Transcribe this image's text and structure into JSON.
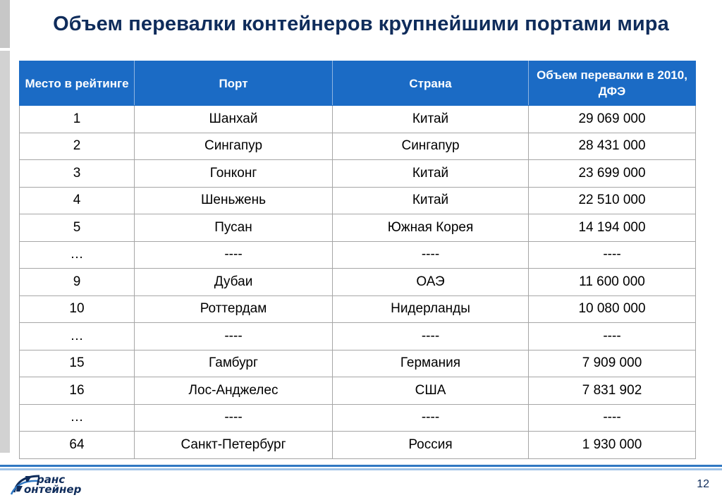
{
  "slide": {
    "title": "Объем перевалки контейнеров крупнейшими портами мира",
    "page_number": "12"
  },
  "logo": {
    "line1": "ранс",
    "line2": "онтейнер",
    "mark": "logo-mark-icon"
  },
  "table": {
    "headers": [
      "Место в рейтинге",
      "Порт",
      "Страна",
      "Объем перевалки в 2010, ДФЭ"
    ],
    "rows": [
      [
        "1",
        "Шанхай",
        "Китай",
        "29 069 000"
      ],
      [
        "2",
        "Сингапур",
        "Сингапур",
        "28 431 000"
      ],
      [
        "3",
        "Гонконг",
        "Китай",
        "23 699 000"
      ],
      [
        "4",
        "Шеньжень",
        "Китай",
        "22 510 000"
      ],
      [
        "5",
        "Пусан",
        "Южная Корея",
        "14 194 000"
      ],
      [
        "…",
        "----",
        "----",
        "----"
      ],
      [
        "9",
        "Дубаи",
        "ОАЭ",
        "11 600 000"
      ],
      [
        "10",
        "Роттердам",
        "Нидерланды",
        "10 080 000"
      ],
      [
        "…",
        "----",
        "----",
        "----"
      ],
      [
        "15",
        "Гамбург",
        "Германия",
        "7 909 000"
      ],
      [
        "16",
        "Лос-Анджелес",
        "США",
        "7 831 902"
      ],
      [
        "…",
        "----",
        "----",
        "----"
      ],
      [
        "64",
        "Санкт-Петербург",
        "Россия",
        "1 930 000"
      ]
    ]
  },
  "colors": {
    "header_bg": "#1b6bc5",
    "title": "#0f2c5b"
  }
}
